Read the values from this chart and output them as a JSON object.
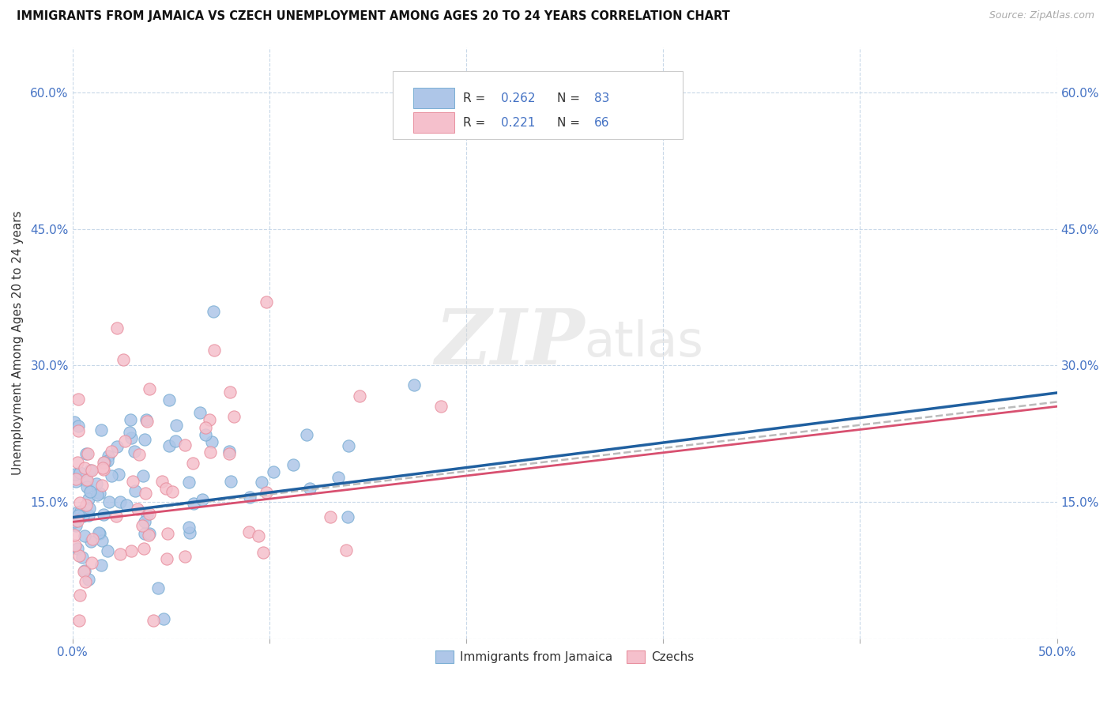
{
  "title": "IMMIGRANTS FROM JAMAICA VS CZECH UNEMPLOYMENT AMONG AGES 20 TO 24 YEARS CORRELATION CHART",
  "source": "Source: ZipAtlas.com",
  "ylabel": "Unemployment Among Ages 20 to 24 years",
  "xlim": [
    0.0,
    0.5
  ],
  "ylim": [
    0.0,
    0.65
  ],
  "xtick_positions": [
    0.0,
    0.1,
    0.2,
    0.3,
    0.4,
    0.5
  ],
  "xtick_labels_show": [
    "0.0%",
    "",
    "",
    "",
    "",
    "50.0%"
  ],
  "ytick_positions": [
    0.0,
    0.15,
    0.3,
    0.45,
    0.6
  ],
  "ytick_labels_left": [
    "",
    "15.0%",
    "30.0%",
    "45.0%",
    "60.0%"
  ],
  "ytick_labels_right": [
    "15.0%",
    "30.0%",
    "45.0%",
    "60.0%"
  ],
  "ytick_positions_right": [
    0.15,
    0.3,
    0.45,
    0.6
  ],
  "blue_face": "#aec6e8",
  "blue_edge": "#7bafd4",
  "pink_face": "#f5c0cc",
  "pink_edge": "#e8909f",
  "blue_line_color": "#2060a0",
  "pink_line_color": "#d85070",
  "pink_line_dash": "dashed",
  "R_blue": 0.262,
  "N_blue": 83,
  "R_pink": 0.221,
  "N_pink": 66,
  "legend_label_blue": "Immigrants from Jamaica",
  "legend_label_pink": "Czechs",
  "label_color": "#4472c4",
  "grid_color": "#c8d8e8",
  "text_color": "#333333",
  "source_color": "#aaaaaa",
  "watermark_color": "#d8d8d8",
  "blue_trend_start_y": 0.133,
  "blue_trend_end_y": 0.27,
  "pink_trend_start_y": 0.128,
  "pink_trend_end_y": 0.255
}
